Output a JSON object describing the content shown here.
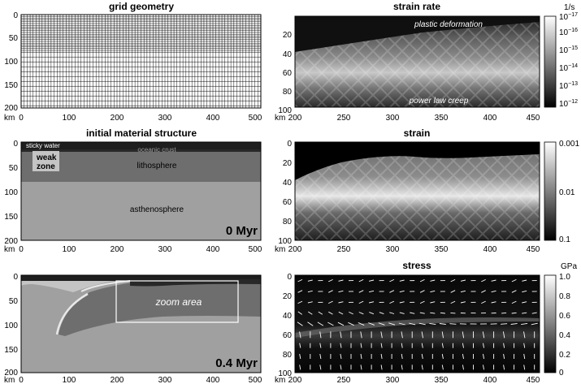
{
  "panels": {
    "grid": {
      "title": "grid geometry",
      "x_ticks": [
        "0",
        "100",
        "200",
        "300",
        "400",
        "500"
      ],
      "y_ticks": [
        "0",
        "50",
        "100",
        "150",
        "200"
      ],
      "unit": "km"
    },
    "strain_rate": {
      "title": "strain rate",
      "x_ticks": [
        "200",
        "250",
        "300",
        "350",
        "400",
        "450"
      ],
      "y_ticks": [
        "20",
        "40",
        "60",
        "80",
        "100"
      ],
      "unit": "km",
      "labels": {
        "top": "plastic deformation",
        "bottom": "power law creep"
      },
      "colorbar": {
        "unit": "1/s",
        "ticks": [
          "10",
          "10",
          "10",
          "10",
          "10"
        ],
        "exps": [
          "−16",
          "−15",
          "−14",
          "−13",
          "−12"
        ],
        "extra_tick": "10",
        "extra_exp": "−17"
      }
    },
    "initial": {
      "title": "initial material structure",
      "x_ticks": [
        "0",
        "100",
        "200",
        "300",
        "400",
        "500"
      ],
      "y_ticks": [
        "0",
        "50",
        "100",
        "150",
        "200"
      ],
      "unit": "km",
      "labels": {
        "sticky": "sticky water",
        "weak1": "weak",
        "weak2": "zone",
        "crust": "oceanic crust",
        "litho": "lithosphere",
        "astheno": "asthenosphere"
      },
      "time": "0 Myr"
    },
    "strain": {
      "title": "strain",
      "x_ticks": [
        "200",
        "250",
        "300",
        "350",
        "400",
        "450"
      ],
      "y_ticks": [
        "0",
        "20",
        "40",
        "60",
        "80",
        "100"
      ],
      "unit": "km",
      "colorbar": {
        "ticks": [
          "0.001",
          "0.01",
          "0.1"
        ]
      }
    },
    "evolved": {
      "x_ticks": [
        "0",
        "100",
        "200",
        "300",
        "400",
        "500"
      ],
      "y_ticks": [
        "0",
        "50",
        "100",
        "150",
        "200"
      ],
      "unit": "km",
      "labels": {
        "zoom": "zoom area"
      },
      "time": "0.4 Myr"
    },
    "stress": {
      "title": "stress",
      "x_ticks": [
        "200",
        "250",
        "300",
        "350",
        "400",
        "450"
      ],
      "y_ticks": [
        "0",
        "20",
        "40",
        "60",
        "80",
        "100"
      ],
      "unit": "km",
      "colorbar": {
        "unit": "GPa",
        "ticks": [
          "1.0",
          "0.8",
          "0.6",
          "0.4",
          "0.2",
          "0"
        ]
      }
    }
  },
  "colors": {
    "sticky_water": "#1e1e1e",
    "lithosphere": "#6e6e6e",
    "asthenosphere": "#a0a0a0",
    "weak_zone": "#c4c4c4",
    "crust": "#282828"
  }
}
